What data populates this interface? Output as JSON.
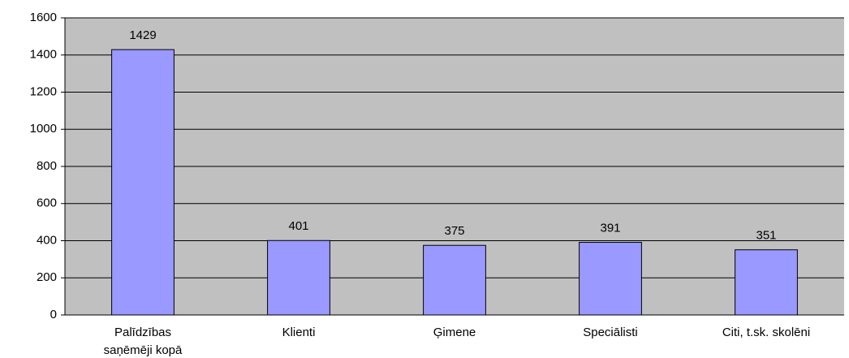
{
  "chart_data": {
    "type": "bar",
    "categories": [
      "Palīdzības saņēmēji kopā",
      "Klienti",
      "Ģimene",
      "Speciālisti",
      "Citi, t.sk. skolēni"
    ],
    "values": [
      1429,
      401,
      375,
      391,
      351
    ],
    "color": "#9999ff",
    "background": "#c0c0c0",
    "ylim": [
      0,
      1600
    ],
    "yticks": [
      0,
      200,
      400,
      600,
      800,
      1000,
      1200,
      1400,
      1600
    ],
    "grid": true
  }
}
